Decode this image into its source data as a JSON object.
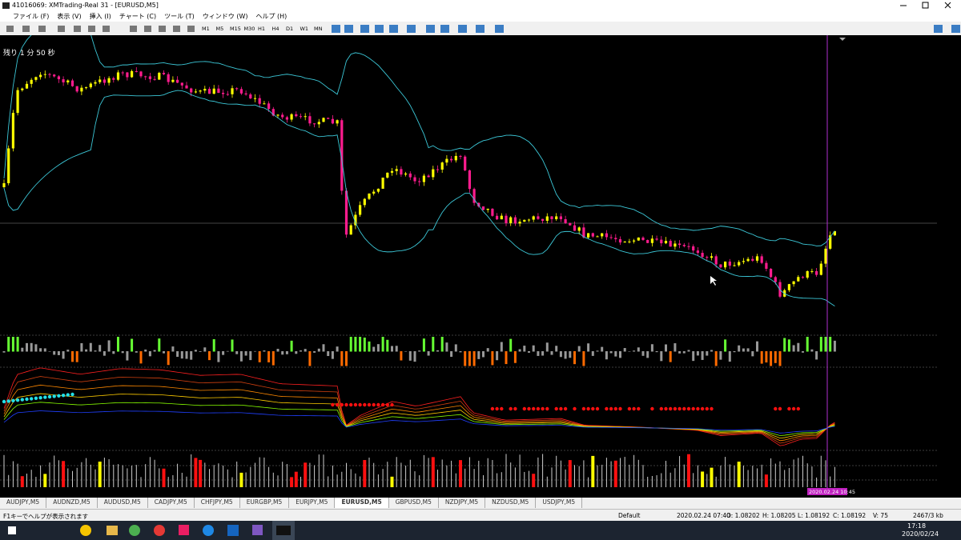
{
  "window": {
    "title": "41016069: XMTrading-Real 31 - [EURUSD,M5]",
    "menu": [
      "ファイル (F)",
      "表示 (V)",
      "挿入 (I)",
      "チャート (C)",
      "ツール (T)",
      "ウィンドウ (W)",
      "ヘルプ (H)"
    ]
  },
  "toolbar": {
    "timeframes": [
      "M1",
      "M5",
      "M15",
      "M30",
      "H1",
      "H4",
      "D1",
      "W1",
      "MN"
    ]
  },
  "chart": {
    "countdown": "残り 1 分 50 秒",
    "time_label": "2020.02.24 10:45"
  },
  "tabs": [
    "AUDJPY,M5",
    "AUDNZD,M5",
    "AUDUSD,M5",
    "CADJPY,M5",
    "CHFJPY,M5",
    "EURGBP,M5",
    "EURJPY,M5",
    "EURUSD,M5",
    "GBPUSD,M5",
    "NZDJPY,M5",
    "NZDUSD,M5",
    "USDJPY,M5"
  ],
  "status": {
    "help": "F1キーでヘルプが表示されます",
    "profile": "Default",
    "time": "2020.02.24 07:40",
    "open": "O: 1.08202",
    "high": "H: 1.08205",
    "low": "L: 1.08192",
    "close": "C: 1.08192",
    "volume": "V: 75",
    "traffic": "2467/3 kb"
  },
  "taskbar": {
    "time": "17:18",
    "date": "2020/02/24"
  }
}
